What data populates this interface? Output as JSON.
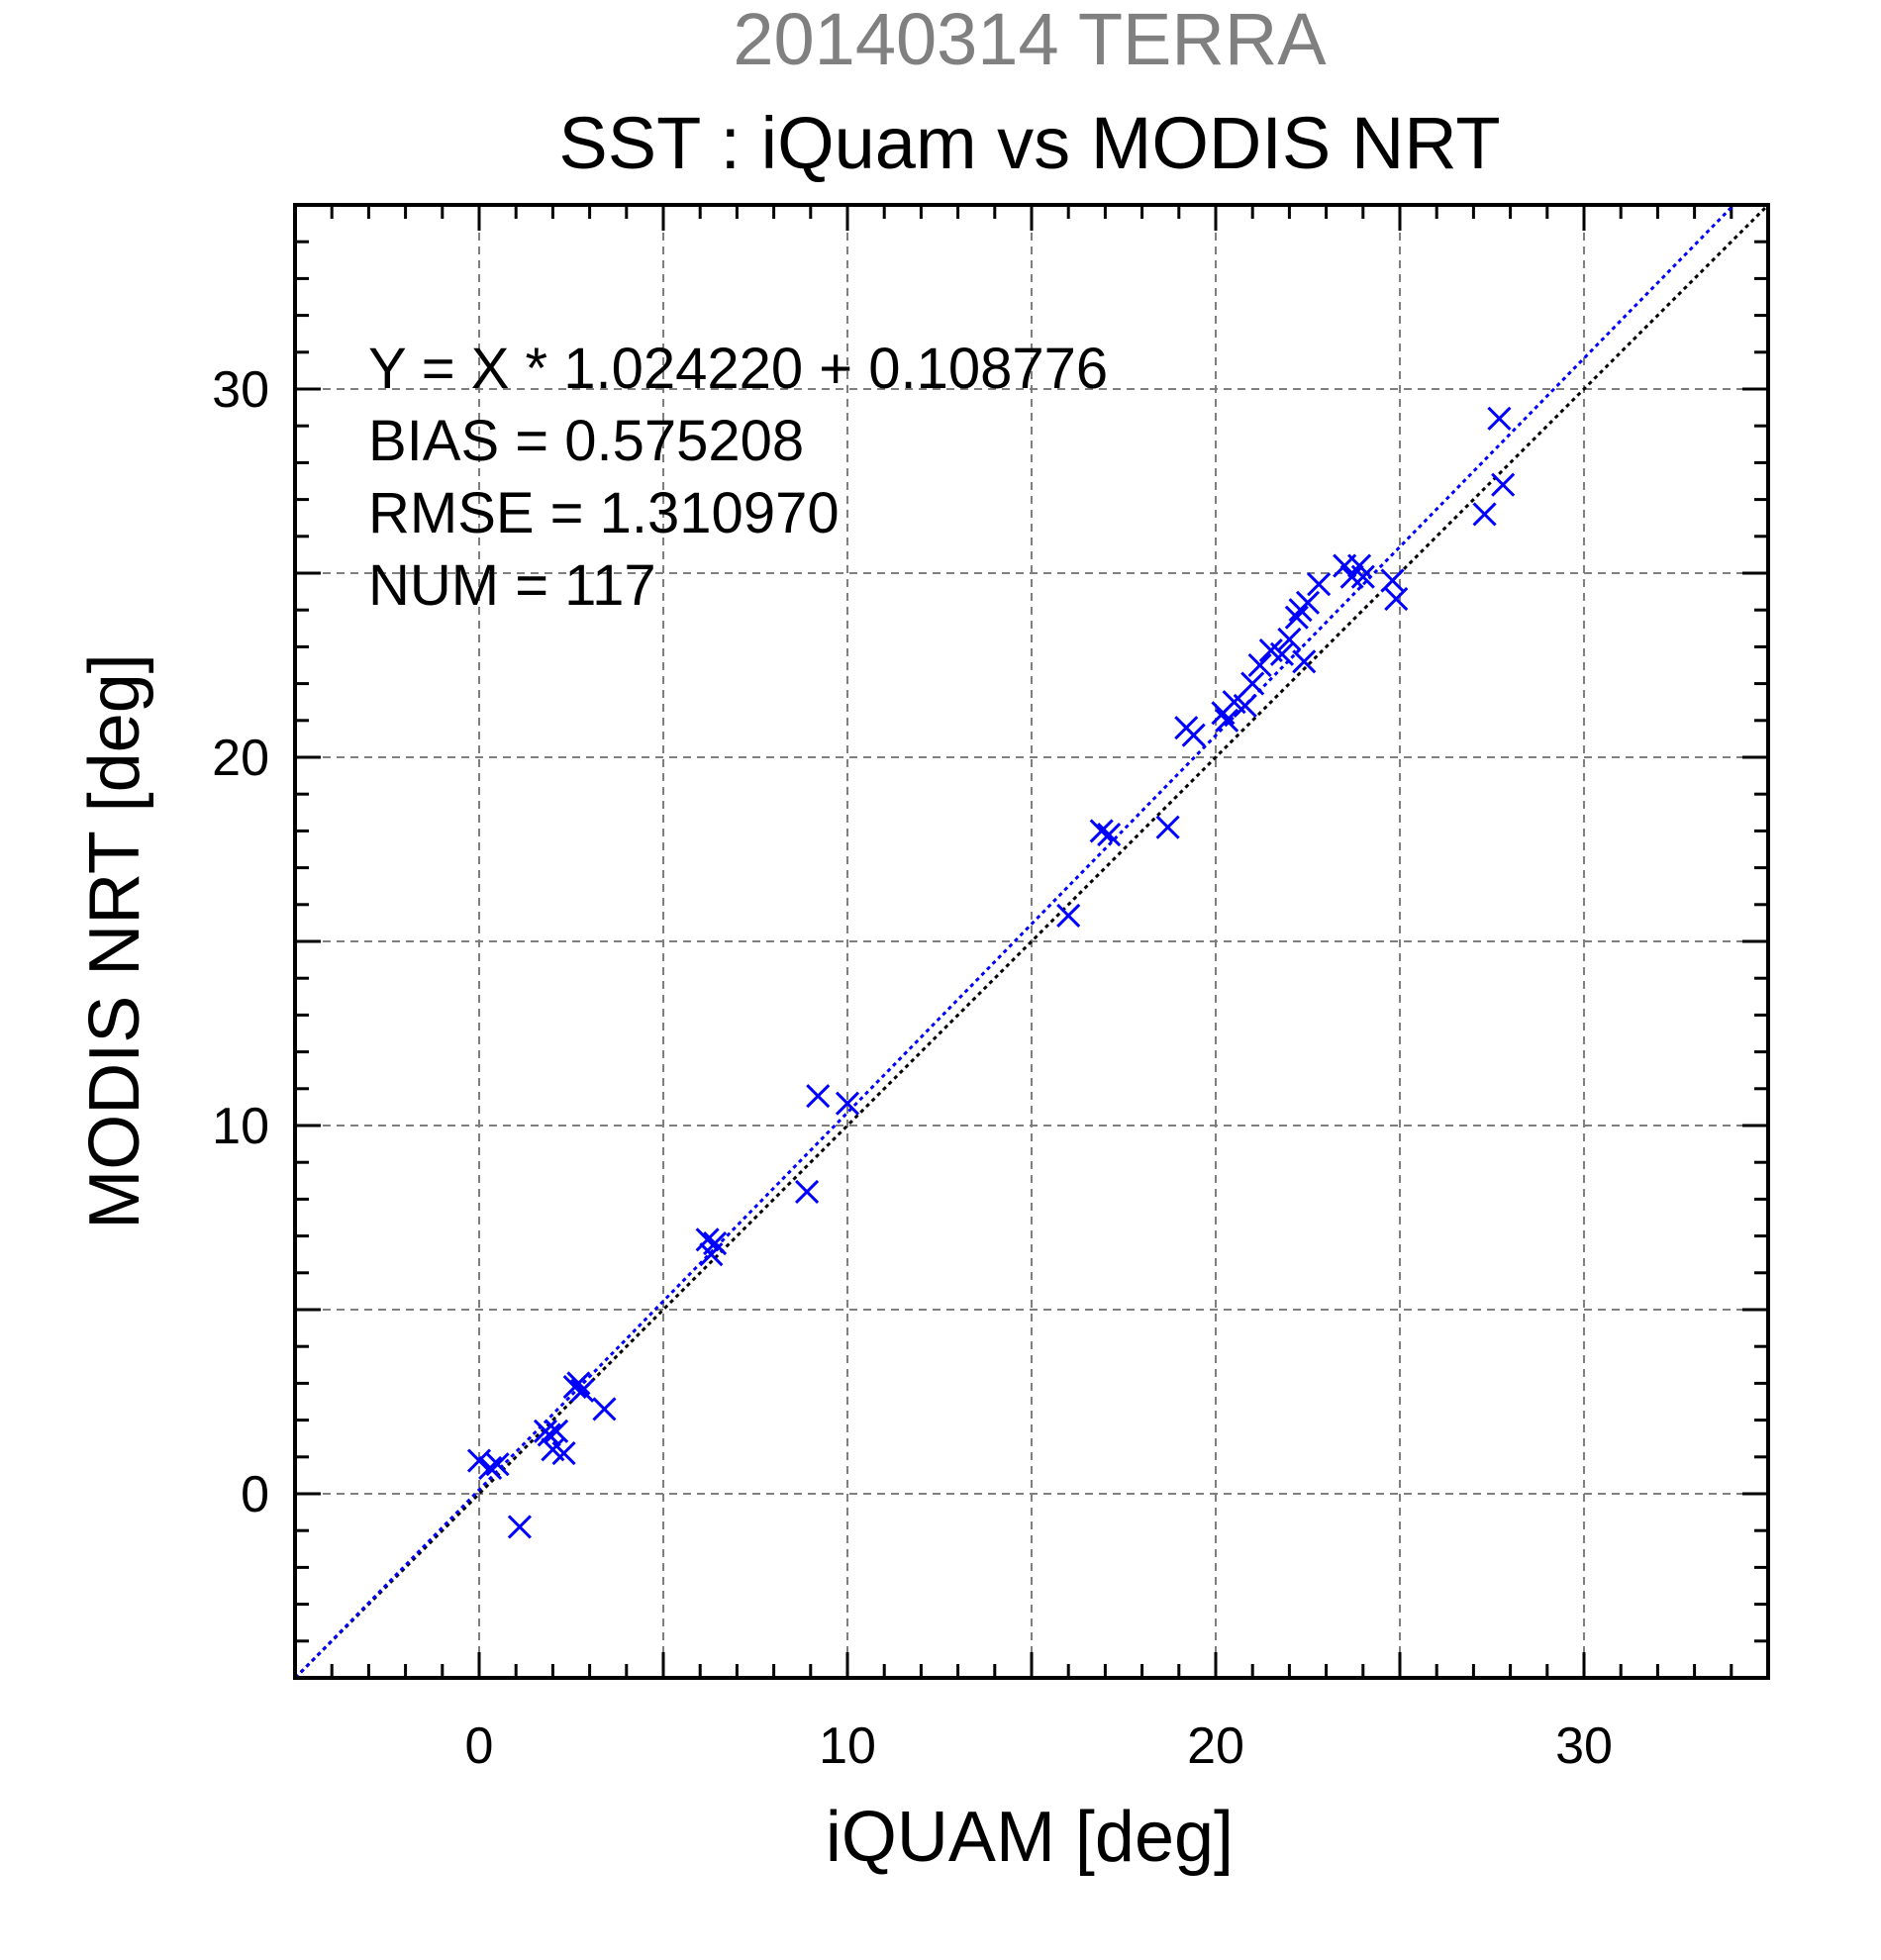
{
  "chart_data": {
    "type": "scatter",
    "supertitle": "20140314 TERRA",
    "title": "SST : iQuam vs MODIS NRT",
    "xlabel": "iQUAM [deg]",
    "ylabel": "MODIS NRT [deg]",
    "xlim": [
      -5,
      35
    ],
    "ylim": [
      -5,
      35
    ],
    "xticks": [
      0,
      10,
      20,
      30
    ],
    "yticks": [
      0,
      10,
      20,
      30
    ],
    "xtick_labels": [
      "0",
      "10",
      "20",
      "30"
    ],
    "ytick_labels": [
      "0",
      "10",
      "20",
      "30"
    ],
    "grid": true,
    "grid_step": 5,
    "minor_tick_step": 1,
    "stats": [
      "Y = X * 1.024220 + 0.108776",
      "BIAS = 0.575208",
      "RMSE = 1.310970",
      "NUM = 117"
    ],
    "regression": {
      "slope": 1.02422,
      "intercept": 0.108776,
      "color": "#0000ff",
      "style": "dotted"
    },
    "identity_line": {
      "slope": 1,
      "intercept": 0,
      "color": "#000000",
      "style": "dotted"
    },
    "marker_color": "#0000ff",
    "marker": "x",
    "points": {
      "x": [
        0.0,
        0.3,
        0.5,
        1.1,
        1.8,
        1.9,
        2.0,
        2.1,
        2.3,
        2.6,
        2.7,
        2.8,
        3.4,
        6.2,
        6.3,
        6.4,
        8.9,
        9.2,
        10.0,
        16.0,
        16.9,
        17.1,
        18.7,
        19.2,
        19.4,
        20.2,
        20.3,
        20.5,
        20.8,
        21.0,
        21.2,
        21.5,
        21.8,
        22.0,
        22.2,
        22.3,
        22.4,
        22.5,
        22.8,
        23.5,
        23.7,
        23.9,
        24.0,
        24.8,
        24.9,
        27.3,
        27.7,
        27.8
      ],
      "y": [
        0.9,
        0.7,
        0.8,
        -0.9,
        1.7,
        1.6,
        1.2,
        1.7,
        1.1,
        2.9,
        3.0,
        2.8,
        2.3,
        6.9,
        6.5,
        6.8,
        8.2,
        10.8,
        10.6,
        15.7,
        18.0,
        17.9,
        18.1,
        20.8,
        20.6,
        21.2,
        21.0,
        21.5,
        21.4,
        22.0,
        22.5,
        22.9,
        22.8,
        23.2,
        23.8,
        24.0,
        22.6,
        24.2,
        24.7,
        25.2,
        24.9,
        25.2,
        24.9,
        24.8,
        24.3,
        26.6,
        29.2,
        27.4
      ]
    }
  }
}
